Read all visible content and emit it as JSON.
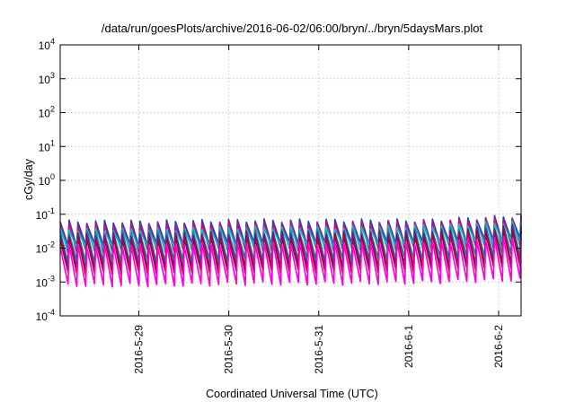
{
  "chart_data": {
    "type": "line",
    "title": "/data/run/goesPlots/archive/2016-06-02/06:00/bryn/../bryn/5daysMars.plot",
    "xlabel": "Coordinated Universal Time (UTC)",
    "ylabel": "cGy/day",
    "yscale": "log",
    "ylim": [
      0.0001,
      10000
    ],
    "xlim": [
      "2016-05-28 03:00",
      "2016-06-02 06:00"
    ],
    "xticks": [
      "2016-5-29",
      "2016-5-30",
      "2016-5-31",
      "2016-6-1",
      "2016-6-2"
    ],
    "yticks": [
      {
        "base": "10",
        "exp": "-4"
      },
      {
        "base": "10",
        "exp": "-3"
      },
      {
        "base": "10",
        "exp": "-2"
      },
      {
        "base": "10",
        "exp": "-1"
      },
      {
        "base": "10",
        "exp": "0"
      },
      {
        "base": "10",
        "exp": "1"
      },
      {
        "base": "10",
        "exp": "2"
      },
      {
        "base": "10",
        "exp": "3"
      },
      {
        "base": "10",
        "exp": "4"
      }
    ],
    "grid": true,
    "pattern": "sawtooth",
    "cycles": 52,
    "series": [
      {
        "color": "#1f3fd6",
        "peak": [
          0.06,
          0.06,
          0.065,
          0.065,
          0.065,
          0.09
        ],
        "trough": [
          0.012,
          0.012,
          0.013,
          0.013,
          0.014,
          0.018
        ]
      },
      {
        "color": "#c0107a",
        "peak": [
          0.05,
          0.05,
          0.055,
          0.055,
          0.06,
          0.08
        ],
        "trough": [
          0.008,
          0.008,
          0.009,
          0.009,
          0.01,
          0.012
        ]
      },
      {
        "color": "#12b7c7",
        "peak": [
          0.035,
          0.035,
          0.04,
          0.04,
          0.045,
          0.06
        ],
        "trough": [
          0.01,
          0.01,
          0.011,
          0.011,
          0.012,
          0.016
        ]
      },
      {
        "color": "#1a8a8a",
        "peak": [
          0.03,
          0.03,
          0.032,
          0.032,
          0.035,
          0.05
        ],
        "trough": [
          0.004,
          0.004,
          0.0045,
          0.0045,
          0.005,
          0.007
        ]
      },
      {
        "color": "#6a1a8a",
        "peak": [
          0.025,
          0.025,
          0.028,
          0.028,
          0.03,
          0.045
        ],
        "trough": [
          0.0025,
          0.0025,
          0.0028,
          0.0028,
          0.003,
          0.004
        ]
      },
      {
        "color": "#b0003a",
        "peak": [
          0.02,
          0.02,
          0.022,
          0.022,
          0.025,
          0.035
        ],
        "trough": [
          0.0018,
          0.0018,
          0.002,
          0.002,
          0.0022,
          0.003
        ]
      },
      {
        "color": "#ff00dd",
        "peak": [
          0.012,
          0.012,
          0.014,
          0.014,
          0.015,
          0.022
        ],
        "trough": [
          0.0008,
          0.0008,
          0.0009,
          0.0009,
          0.001,
          0.0012
        ]
      }
    ]
  }
}
